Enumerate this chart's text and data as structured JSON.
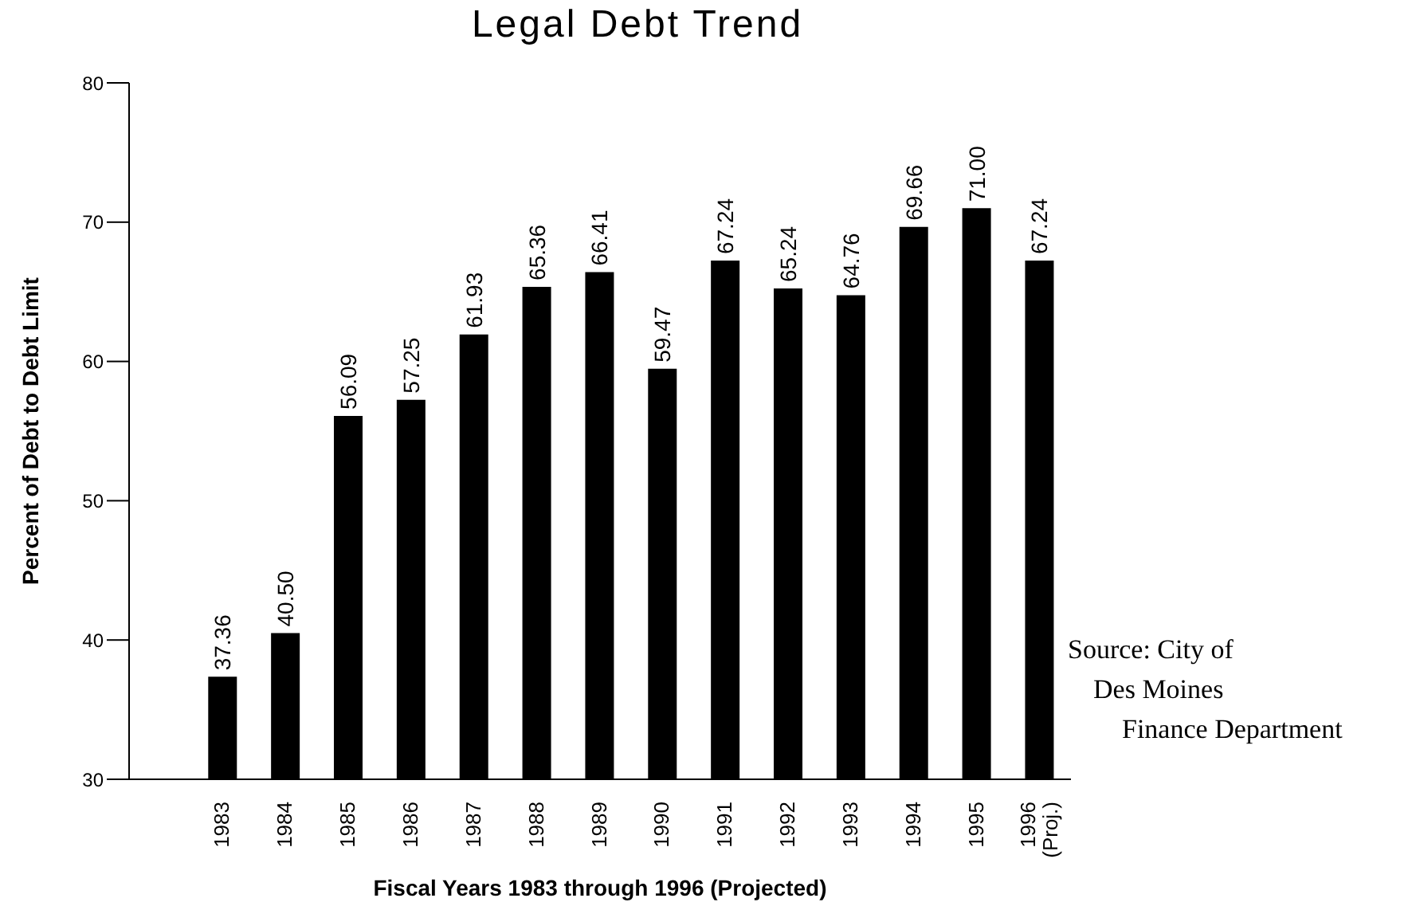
{
  "chart_data": {
    "type": "bar",
    "title": "Legal Debt Trend",
    "xlabel": "Fiscal Years 1983 through 1996 (Projected)",
    "ylabel": "Percent of Debt to Debt Limit",
    "categories": [
      "1983",
      "1984",
      "1985",
      "1986",
      "1987",
      "1988",
      "1989",
      "1990",
      "1991",
      "1992",
      "1993",
      "1994",
      "1995",
      "1996 (Proj.)"
    ],
    "values": [
      37.36,
      40.5,
      56.09,
      57.25,
      61.93,
      65.36,
      66.41,
      59.47,
      67.24,
      65.24,
      64.76,
      69.66,
      71.0,
      67.24
    ],
    "value_labels": [
      "37.36",
      "40.50",
      "56.09",
      "57.25",
      "61.93",
      "65.36",
      "66.41",
      "59.47",
      "67.24",
      "65.24",
      "64.76",
      "69.66",
      "71.00",
      "67.24"
    ],
    "color": "#000000",
    "ylim": [
      30,
      80
    ],
    "yticks": [
      30,
      40,
      50,
      60,
      70,
      80
    ],
    "grid": false,
    "annotations": [
      "Source: City of",
      "Des Moines",
      "Finance Department"
    ]
  }
}
